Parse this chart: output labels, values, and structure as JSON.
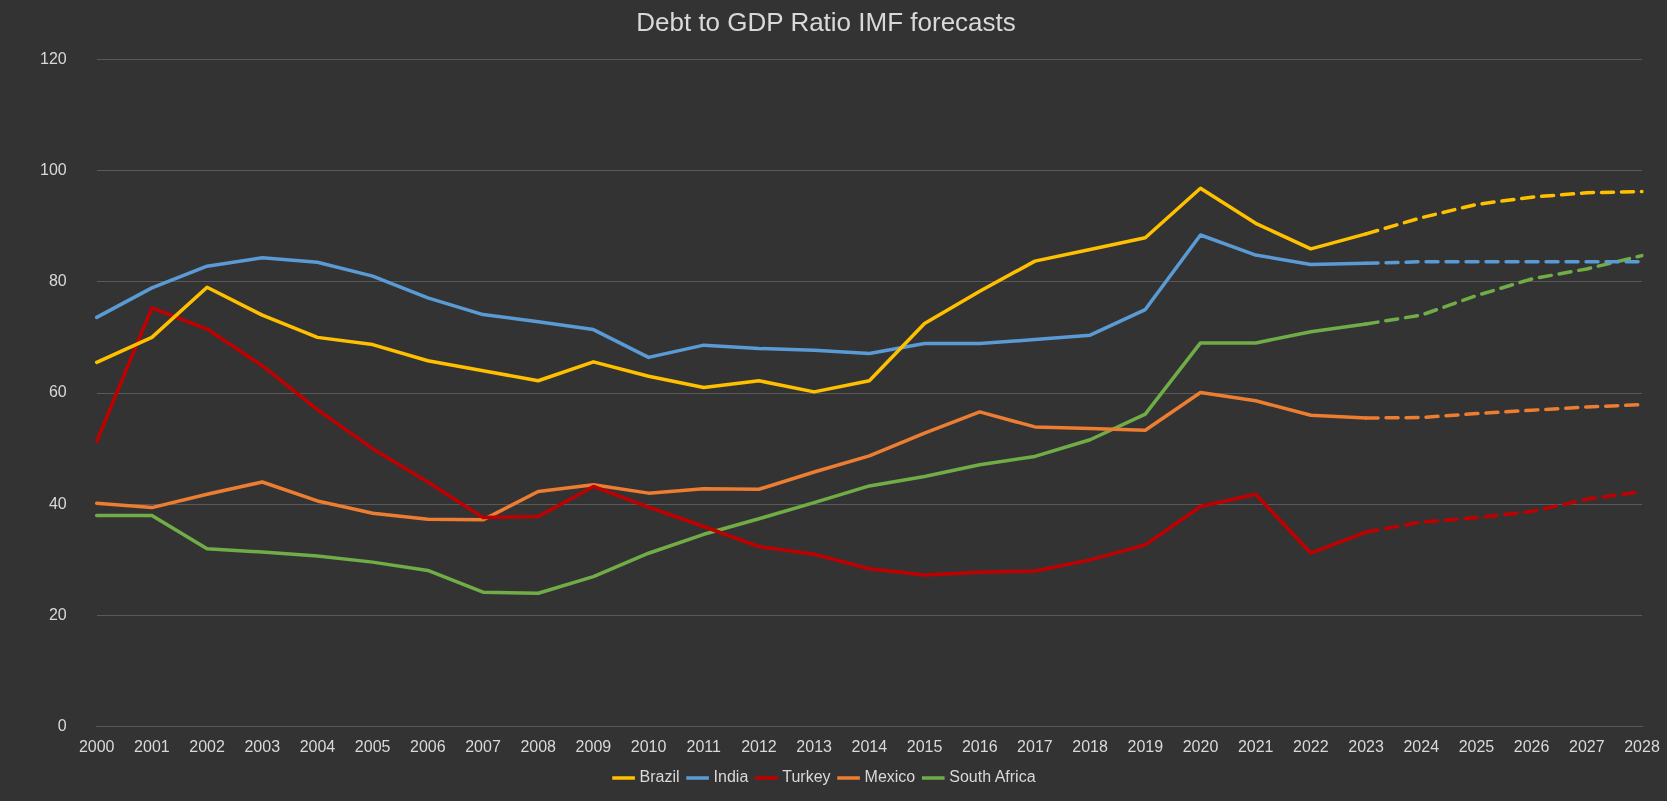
{
  "chart_data": {
    "type": "line",
    "title": "Debt to GDP Ratio IMF forecasts",
    "categories": [
      "2000",
      "2001",
      "2002",
      "2003",
      "2004",
      "2005",
      "2006",
      "2007",
      "2008",
      "2009",
      "2010",
      "2011",
      "2012",
      "2013",
      "2014",
      "2015",
      "2016",
      "2017",
      "2018",
      "2019",
      "2020",
      "2021",
      "2022",
      "2023",
      "2024",
      "2025",
      "2026",
      "2027",
      "2028"
    ],
    "ylim": [
      0,
      120
    ],
    "yticks": [
      0,
      20,
      40,
      60,
      80,
      100,
      120
    ],
    "grid": "y",
    "legend": "bottom",
    "marker": "none",
    "series": [
      {
        "name": "Brazil",
        "color": "#ffc000",
        "line_style": "solid",
        "values": [
          65.5,
          70,
          79,
          74,
          70,
          68.7,
          65.8,
          64,
          62.2,
          65.6,
          63,
          61,
          62.2,
          60.2,
          62.2,
          72.5,
          78.3,
          83.7,
          85.8,
          87.9,
          96.8,
          90.5,
          85.9,
          88.6,
          null,
          null,
          null,
          null,
          null
        ]
      },
      {
        "name": "India",
        "color": "#5b9bd5",
        "line_style": "solid",
        "values": [
          73.6,
          78.9,
          82.8,
          84.3,
          83.5,
          81,
          77.1,
          74.1,
          72.8,
          71.4,
          66.4,
          68.6,
          68,
          67.7,
          67.1,
          68.9,
          68.9,
          69.6,
          70.4,
          75,
          88.4,
          84.8,
          83.1,
          83.3,
          null,
          null,
          null,
          null,
          null
        ]
      },
      {
        "name": "Turkey",
        "color": "#c00000",
        "line_style": "solid",
        "values": [
          51.3,
          75.3,
          71.5,
          64.9,
          57,
          50,
          44,
          37.6,
          37.8,
          43.2,
          39.5,
          36,
          32.4,
          31,
          28.4,
          27.3,
          27.8,
          28,
          30,
          32.7,
          39.6,
          41.8,
          31.2,
          35,
          null,
          null,
          null,
          null,
          null
        ]
      },
      {
        "name": "Mexico",
        "color": "#ed7d31",
        "line_style": "solid",
        "values": [
          40.2,
          39.4,
          41.8,
          44,
          40.6,
          38.4,
          37.3,
          37.2,
          42.3,
          43.5,
          42,
          42.8,
          42.7,
          45.8,
          48.7,
          52.8,
          56.6,
          53.9,
          53.6,
          53.3,
          60.1,
          58.6,
          56,
          55.5,
          null,
          null,
          null,
          null,
          null
        ]
      },
      {
        "name": "South Africa",
        "color": "#70ad47",
        "line_style": "solid",
        "values": [
          38,
          38,
          32,
          31.4,
          30.7,
          29.6,
          28.1,
          24.2,
          24,
          27,
          31.2,
          34.6,
          37.4,
          40.3,
          43.3,
          45,
          47.1,
          48.6,
          51.6,
          56.2,
          69,
          69,
          71,
          72.4,
          null,
          null,
          null,
          null,
          null
        ]
      },
      {
        "color": "#ffc000",
        "line_style": "dashed",
        "values": [
          null,
          null,
          null,
          null,
          null,
          null,
          null,
          null,
          null,
          null,
          null,
          null,
          null,
          null,
          null,
          null,
          null,
          null,
          null,
          null,
          null,
          null,
          null,
          88.6,
          91.5,
          93.9,
          95.2,
          96,
          96.2
        ]
      },
      {
        "color": "#5b9bd5",
        "line_style": "dashed",
        "values": [
          null,
          null,
          null,
          null,
          null,
          null,
          null,
          null,
          null,
          null,
          null,
          null,
          null,
          null,
          null,
          null,
          null,
          null,
          null,
          null,
          null,
          null,
          null,
          83.3,
          83.6,
          83.6,
          83.6,
          83.6,
          83.6
        ]
      },
      {
        "color": "#c00000",
        "line_style": "dashed",
        "values": [
          null,
          null,
          null,
          null,
          null,
          null,
          null,
          null,
          null,
          null,
          null,
          null,
          null,
          null,
          null,
          null,
          null,
          null,
          null,
          null,
          null,
          null,
          null,
          35,
          36.8,
          37.6,
          38.7,
          40.9,
          42.3
        ]
      },
      {
        "color": "#ed7d31",
        "line_style": "dashed",
        "values": [
          null,
          null,
          null,
          null,
          null,
          null,
          null,
          null,
          null,
          null,
          null,
          null,
          null,
          null,
          null,
          null,
          null,
          null,
          null,
          null,
          null,
          null,
          null,
          55.5,
          55.6,
          56.3,
          56.9,
          57.5,
          57.9
        ]
      },
      {
        "color": "#70ad47",
        "line_style": "dashed",
        "values": [
          null,
          null,
          null,
          null,
          null,
          null,
          null,
          null,
          null,
          null,
          null,
          null,
          null,
          null,
          null,
          null,
          null,
          null,
          null,
          null,
          null,
          null,
          null,
          72.4,
          74,
          77.5,
          80.5,
          82.3,
          84.7
        ]
      }
    ]
  }
}
